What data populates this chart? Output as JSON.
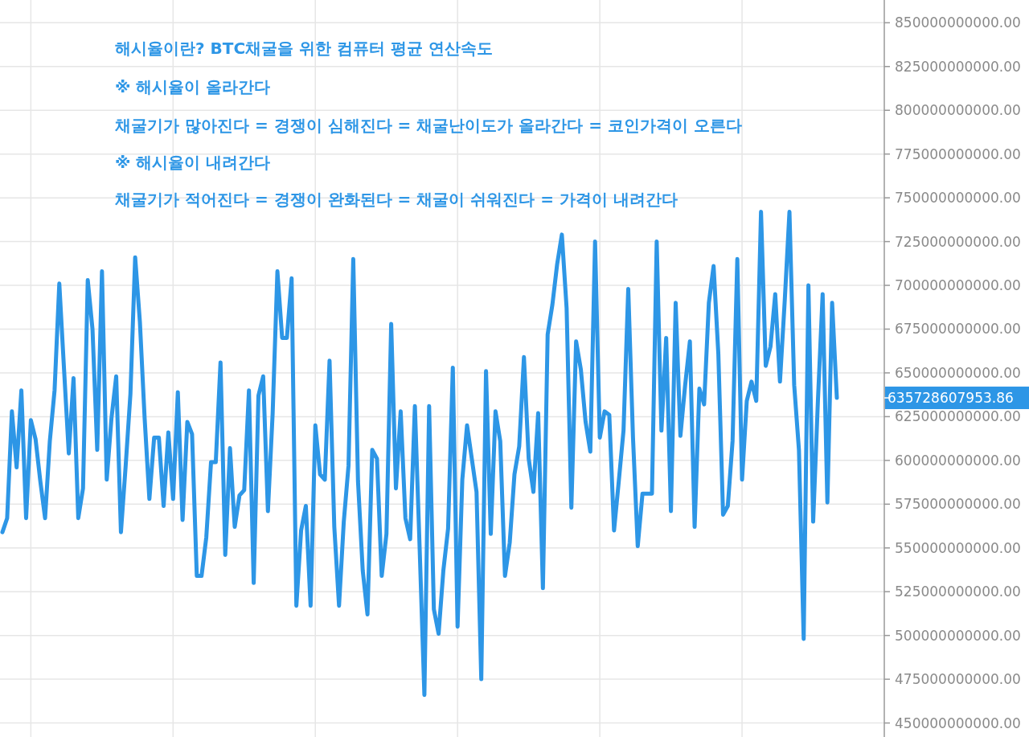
{
  "chart_data": {
    "type": "line",
    "annotations": [
      "해시율이란? BTC채굴을 위한 컴퓨터 평균 연산속도",
      "※ 해시율이 올라간다",
      "채굴기가 많아진다 = 경쟁이 심해진다 = 채굴난이도가 올라간다 = 코인가격이 오른다",
      "※ 해시율이 내려간다",
      "채굴기가 적어진다 = 경쟁이 완화된다 = 채굴이 쉬워진다 = 가격이 내려간다",
      "635728607953.86"
    ],
    "categories": [
      null,
      null,
      null,
      null,
      null,
      null,
      null,
      null,
      null,
      null,
      null,
      null,
      null,
      null,
      null,
      null,
      null,
      null,
      null,
      null,
      null,
      null,
      null,
      null,
      null,
      null,
      null,
      null,
      null,
      null,
      null,
      null,
      null,
      null,
      null,
      null,
      null,
      null,
      null,
      null,
      null,
      null,
      null,
      null,
      null,
      null,
      null,
      null,
      null,
      null,
      null,
      null,
      null,
      null,
      null,
      null,
      null,
      null,
      null,
      null,
      null,
      null,
      null,
      null,
      null,
      null,
      null,
      null,
      null,
      null,
      null,
      null,
      null,
      null,
      null,
      null,
      null,
      null,
      null,
      null,
      null,
      null,
      null,
      null,
      null,
      null,
      null,
      null,
      null,
      null,
      null,
      null,
      null,
      null,
      null,
      null,
      null,
      null,
      null,
      null,
      null,
      null,
      null,
      null,
      null,
      null,
      null,
      null,
      null,
      null,
      null,
      null,
      null,
      null,
      null,
      null,
      null,
      null,
      null,
      null,
      null,
      null,
      null,
      null,
      null,
      null,
      null,
      null,
      null,
      null,
      null,
      null,
      null,
      null,
      null,
      null,
      null,
      null,
      null,
      null,
      null,
      null,
      null,
      null,
      null,
      null,
      null,
      null,
      null,
      null,
      null,
      null,
      null,
      null,
      null,
      null,
      null,
      null,
      null,
      null,
      null,
      null,
      null,
      null,
      null,
      null,
      null,
      null,
      null,
      null,
      null,
      null,
      null,
      null,
      null,
      null,
      null
    ],
    "series": [
      {
        "color": "#2d96e6",
        "values": [
          559000000000,
          567000000000,
          628000000000,
          596000000000,
          640000000000,
          567000000000,
          623000000000,
          612000000000,
          588000000000,
          567000000000,
          611000000000,
          640000000000,
          701000000000,
          652000000000,
          604000000000,
          647000000000,
          567000000000,
          584000000000,
          703000000000,
          675000000000,
          606000000000,
          708000000000,
          589000000000,
          624000000000,
          648000000000,
          559000000000,
          597000000000,
          638000000000,
          716000000000,
          679000000000,
          624000000000,
          578000000000,
          613000000000,
          613000000000,
          574000000000,
          616000000000,
          578000000000,
          639000000000,
          566000000000,
          622000000000,
          615000000000,
          534000000000,
          534000000000,
          556000000000,
          599000000000,
          599000000000,
          656000000000,
          546000000000,
          607000000000,
          562000000000,
          580000000000,
          583000000000,
          640000000000,
          530000000000,
          637000000000,
          648000000000,
          571000000000,
          627000000000,
          708000000000,
          670000000000,
          670000000000,
          704000000000,
          517000000000,
          560000000000,
          574000000000,
          517000000000,
          620000000000,
          592000000000,
          589000000000,
          657000000000,
          562000000000,
          517000000000,
          565000000000,
          597000000000,
          715000000000,
          588000000000,
          537000000000,
          512000000000,
          606000000000,
          601000000000,
          534000000000,
          558000000000,
          678000000000,
          584000000000,
          628000000000,
          567000000000,
          555000000000,
          631000000000,
          550000000000,
          466000000000,
          631000000000,
          515000000000,
          501000000000,
          537000000000,
          561000000000,
          653000000000,
          505000000000,
          589000000000,
          620000000000,
          601000000000,
          582000000000,
          475000000000,
          651000000000,
          558000000000,
          628000000000,
          611000000000,
          534000000000,
          553000000000,
          592000000000,
          608000000000,
          659000000000,
          601000000000,
          582000000000,
          627000000000,
          527000000000,
          672000000000,
          689000000000,
          712000000000,
          729000000000,
          687000000000,
          573000000000,
          668000000000,
          652000000000,
          622000000000,
          605000000000,
          725000000000,
          613000000000,
          628000000000,
          626000000000,
          560000000000,
          588000000000,
          617000000000,
          698000000000,
          613000000000,
          551000000000,
          581000000000,
          581000000000,
          581000000000,
          725000000000,
          617000000000,
          670000000000,
          571000000000,
          690000000000,
          614000000000,
          643000000000,
          668000000000,
          562000000000,
          641000000000,
          632000000000,
          690000000000,
          711000000000,
          661000000000,
          569000000000,
          574000000000,
          611000000000,
          715000000000,
          589000000000,
          634000000000,
          645000000000,
          634000000000,
          742000000000,
          654000000000,
          665000000000,
          695000000000,
          645000000000,
          691000000000,
          742000000000,
          643000000000,
          606000000000,
          498000000000,
          700000000000,
          565000000000,
          634000000000,
          695000000000,
          576000000000,
          690000000000,
          635728607953.86
        ]
      }
    ],
    "ylim": [
      442000000000,
      863000000000
    ],
    "yticks": [
      {
        "value": 450000000000,
        "label": "450000000000.00"
      },
      {
        "value": 475000000000,
        "label": "475000000000.00"
      },
      {
        "value": 500000000000,
        "label": "500000000000.00"
      },
      {
        "value": 525000000000,
        "label": "525000000000.00"
      },
      {
        "value": 550000000000,
        "label": "550000000000.00"
      },
      {
        "value": 575000000000,
        "label": "575000000000.00"
      },
      {
        "value": 600000000000,
        "label": "600000000000.00"
      },
      {
        "value": 625000000000,
        "label": "625000000000.00"
      },
      {
        "value": 650000000000,
        "label": "650000000000.00"
      },
      {
        "value": 675000000000,
        "label": "675000000000.00"
      },
      {
        "value": 700000000000,
        "label": "700000000000.00"
      },
      {
        "value": 725000000000,
        "label": "725000000000.00"
      },
      {
        "value": 750000000000,
        "label": "750000000000.00"
      },
      {
        "value": 775000000000,
        "label": "775000000000.00"
      },
      {
        "value": 800000000000,
        "label": "800000000000.00"
      },
      {
        "value": 825000000000,
        "label": "825000000000.00"
      },
      {
        "value": 850000000000,
        "label": "850000000000.00"
      }
    ],
    "grid": true,
    "marker": "none",
    "line_style": "solid"
  }
}
